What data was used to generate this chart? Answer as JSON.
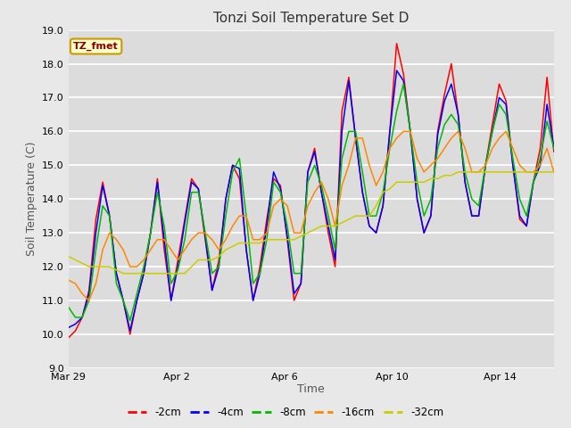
{
  "title": "Tonzi Soil Temperature Set D",
  "xlabel": "Time",
  "ylabel": "Soil Temperature (C)",
  "annotation": "TZ_fmet",
  "ylim": [
    9.0,
    19.0
  ],
  "yticks": [
    9.0,
    10.0,
    11.0,
    12.0,
    13.0,
    14.0,
    15.0,
    16.0,
    17.0,
    18.0,
    19.0
  ],
  "fig_bg_color": "#e8e8e8",
  "plot_bg_color": "#dcdcdc",
  "grid_color": "#ffffff",
  "series_colors": {
    "-2cm": "#ff0000",
    "-4cm": "#0000ff",
    "-8cm": "#00bb00",
    "-16cm": "#ff8800",
    "-32cm": "#cccc00"
  },
  "series_labels": [
    "-2cm",
    "-4cm",
    "-8cm",
    "-16cm",
    "-32cm"
  ],
  "x_tick_labels": [
    "Mar 29",
    "Apr 2",
    "Apr 6",
    "Apr 10",
    "Apr 14"
  ],
  "x_tick_positions": [
    0,
    4,
    8,
    12,
    16
  ],
  "total_days": 18,
  "n2cm": [
    9.9,
    10.1,
    10.5,
    11.3,
    13.4,
    14.5,
    13.5,
    11.8,
    11.0,
    10.0,
    11.0,
    11.8,
    13.0,
    14.6,
    12.5,
    11.0,
    12.2,
    13.4,
    14.6,
    14.3,
    12.8,
    11.3,
    12.2,
    14.0,
    15.0,
    14.6,
    12.5,
    11.0,
    12.0,
    13.4,
    14.6,
    14.4,
    12.8,
    11.0,
    11.5,
    14.8,
    15.5,
    14.2,
    13.0,
    12.0,
    16.6,
    17.6,
    15.8,
    14.2,
    13.2,
    13.0,
    13.8,
    16.0,
    18.6,
    17.7,
    16.0,
    14.0,
    13.0,
    13.5,
    16.0,
    17.1,
    18.0,
    16.5,
    14.5,
    13.5,
    13.5,
    15.0,
    16.2,
    17.4,
    16.9,
    15.0,
    13.4,
    13.2,
    14.5,
    15.5,
    17.6,
    15.4
  ],
  "n4cm": [
    10.2,
    10.3,
    10.5,
    11.2,
    13.0,
    14.4,
    13.5,
    11.8,
    11.0,
    10.1,
    11.0,
    11.8,
    13.0,
    14.5,
    12.8,
    11.0,
    12.0,
    13.3,
    14.5,
    14.3,
    12.9,
    11.3,
    12.0,
    14.0,
    15.0,
    14.9,
    12.5,
    11.0,
    11.8,
    13.2,
    14.8,
    14.3,
    12.9,
    11.2,
    11.5,
    14.8,
    15.4,
    14.2,
    13.2,
    12.2,
    16.0,
    17.5,
    15.8,
    14.2,
    13.2,
    13.0,
    13.8,
    16.0,
    17.8,
    17.5,
    16.0,
    14.0,
    13.0,
    13.5,
    15.9,
    16.9,
    17.4,
    16.5,
    14.5,
    13.5,
    13.5,
    15.0,
    16.0,
    17.0,
    16.8,
    15.0,
    13.5,
    13.2,
    14.5,
    15.0,
    16.8,
    15.5
  ],
  "n8cm": [
    10.8,
    10.5,
    10.5,
    11.0,
    12.5,
    13.8,
    13.5,
    11.5,
    11.0,
    10.4,
    11.2,
    12.0,
    13.0,
    14.2,
    13.2,
    11.5,
    11.9,
    12.8,
    14.2,
    14.2,
    13.0,
    11.8,
    12.0,
    13.5,
    14.8,
    15.2,
    13.5,
    11.5,
    11.8,
    12.8,
    14.5,
    14.2,
    13.2,
    11.8,
    11.8,
    14.5,
    15.0,
    14.4,
    13.5,
    12.5,
    15.2,
    16.0,
    16.0,
    14.8,
    13.5,
    13.5,
    14.2,
    15.5,
    16.6,
    17.4,
    16.0,
    14.5,
    13.5,
    14.0,
    15.5,
    16.2,
    16.5,
    16.2,
    14.8,
    14.0,
    13.8,
    15.0,
    16.0,
    16.8,
    16.5,
    15.2,
    14.0,
    13.5,
    14.5,
    15.2,
    16.3,
    15.5
  ],
  "n16cm": [
    11.6,
    11.5,
    11.2,
    11.0,
    11.5,
    12.5,
    13.0,
    12.8,
    12.5,
    12.0,
    12.0,
    12.2,
    12.5,
    12.8,
    12.8,
    12.5,
    12.2,
    12.5,
    12.8,
    13.0,
    13.0,
    12.8,
    12.5,
    12.8,
    13.2,
    13.5,
    13.5,
    12.8,
    12.8,
    13.0,
    13.8,
    14.0,
    13.8,
    13.0,
    13.0,
    13.8,
    14.2,
    14.5,
    14.0,
    13.2,
    14.4,
    15.0,
    15.8,
    15.8,
    15.0,
    14.4,
    14.8,
    15.5,
    15.8,
    16.0,
    16.0,
    15.2,
    14.8,
    15.0,
    15.2,
    15.5,
    15.8,
    16.0,
    15.5,
    14.8,
    14.8,
    15.0,
    15.5,
    15.8,
    16.0,
    15.5,
    15.0,
    14.8,
    14.8,
    15.0,
    15.5,
    14.8
  ],
  "n32cm": [
    12.3,
    12.2,
    12.1,
    12.0,
    12.0,
    12.0,
    12.0,
    11.9,
    11.8,
    11.8,
    11.8,
    11.8,
    11.8,
    11.8,
    11.8,
    11.8,
    11.8,
    11.8,
    12.0,
    12.2,
    12.2,
    12.2,
    12.3,
    12.5,
    12.6,
    12.7,
    12.7,
    12.7,
    12.7,
    12.8,
    12.8,
    12.8,
    12.8,
    12.8,
    12.9,
    13.0,
    13.1,
    13.2,
    13.2,
    13.2,
    13.3,
    13.4,
    13.5,
    13.5,
    13.5,
    13.8,
    14.2,
    14.3,
    14.5,
    14.5,
    14.5,
    14.5,
    14.5,
    14.6,
    14.6,
    14.7,
    14.7,
    14.8,
    14.8,
    14.8,
    14.8,
    14.8,
    14.8,
    14.8,
    14.8,
    14.8,
    14.8,
    14.8,
    14.8,
    14.8,
    14.8,
    14.8
  ]
}
